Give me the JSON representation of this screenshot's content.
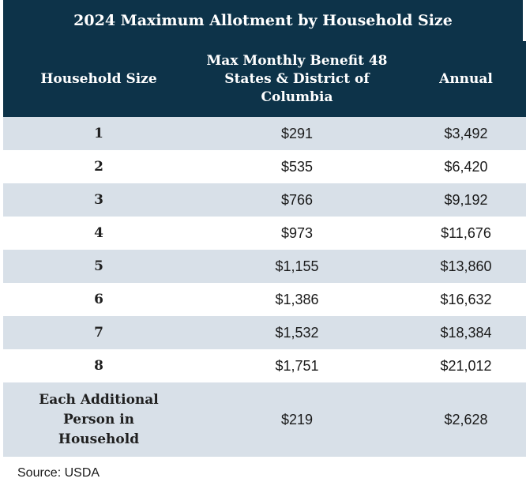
{
  "title": "2024 Maximum Allotment by Household Size",
  "headers": {
    "household_size": "Household Size",
    "monthly": "Max Monthly Benefit 48 States & District of Columbia",
    "annual": "Annual"
  },
  "rows": [
    {
      "size": "1",
      "monthly": "$291",
      "annual": "$3,492"
    },
    {
      "size": "2",
      "monthly": "$535",
      "annual": "$6,420"
    },
    {
      "size": "3",
      "monthly": "$766",
      "annual": "$9,192"
    },
    {
      "size": "4",
      "monthly": "$973",
      "annual": "$11,676"
    },
    {
      "size": "5",
      "monthly": "$1,155",
      "annual": "$13,860"
    },
    {
      "size": "6",
      "monthly": "$1,386",
      "annual": "$16,632"
    },
    {
      "size": "7",
      "monthly": "$1,532",
      "annual": "$18,384"
    },
    {
      "size": "8",
      "monthly": "$1,751",
      "annual": "$21,012"
    },
    {
      "size": "Each Additional Person in Household",
      "monthly": "$219",
      "annual": "$2,628"
    }
  ],
  "source": "Source: USDA",
  "colors": {
    "header_bg": "#0d3349",
    "stripe_bg": "#d8e0e8"
  }
}
